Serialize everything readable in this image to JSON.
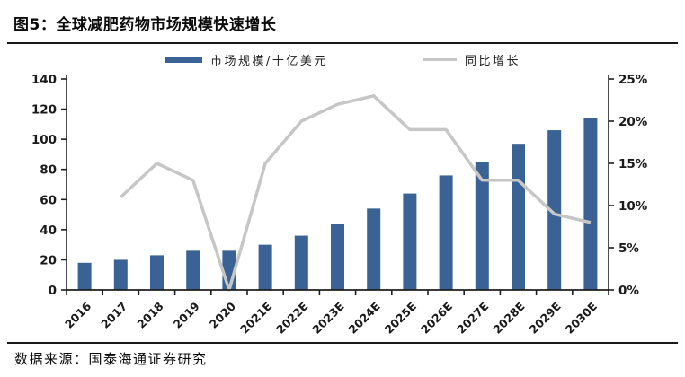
{
  "figure": {
    "title": "图5：全球减肥药物市场规模快速增长",
    "source": "数据来源：国泰海通证券研究"
  },
  "chart_data": {
    "type": "combo",
    "title": "全球减肥药物市场规模快速增长",
    "categories": [
      "2016",
      "2017",
      "2018",
      "2019",
      "2020",
      "2021E",
      "2022E",
      "2023E",
      "2024E",
      "2025E",
      "2026E",
      "2027E",
      "2028E",
      "2029E",
      "2030E"
    ],
    "series": [
      {
        "name": "市场规模/十亿美元",
        "type": "bar",
        "axis": "left",
        "values": [
          18,
          20,
          23,
          26,
          26,
          30,
          36,
          44,
          54,
          64,
          76,
          85,
          97,
          106,
          114
        ]
      },
      {
        "name": "同比增长",
        "type": "line",
        "axis": "right",
        "values": [
          null,
          11,
          15,
          13,
          0,
          15,
          20,
          22,
          23,
          19,
          19,
          13,
          13,
          9,
          8
        ]
      }
    ],
    "left_axis": {
      "min": 0,
      "max": 140,
      "step": 20,
      "ticks": [
        "0",
        "20",
        "40",
        "60",
        "80",
        "100",
        "120",
        "140"
      ]
    },
    "right_axis": {
      "min": 0,
      "max": 25,
      "step": 5,
      "ticks": [
        "0%",
        "5%",
        "10%",
        "15%",
        "20%",
        "25%"
      ]
    },
    "xlabel": "",
    "ylabel": "",
    "grid": false,
    "legend_position": "top"
  },
  "colors": {
    "bar": "#3A6294",
    "line": "#C6C6C6",
    "axis": "#1F1F1F",
    "tick_label": "#1A1A1A"
  }
}
